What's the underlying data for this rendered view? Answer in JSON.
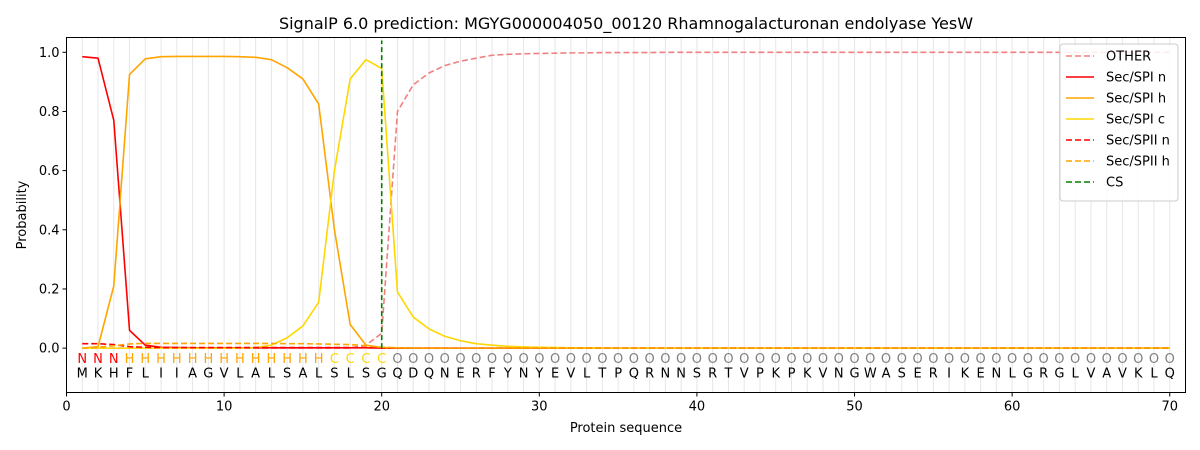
{
  "chart_data": {
    "type": "line",
    "title": "SignalP 6.0 prediction: MGYG000004050_00120 Rhamnogalacturonan endolyase YesW",
    "xlabel": "Protein sequence",
    "ylabel": "Probability",
    "xlim": [
      0,
      71
    ],
    "ylim": [
      -0.15,
      1.05
    ],
    "x_ticks": [
      0,
      10,
      20,
      30,
      40,
      50,
      60,
      70
    ],
    "y_ticks": [
      0.0,
      0.2,
      0.4,
      0.6,
      0.8,
      1.0
    ],
    "x_tick_labels": [
      "0",
      "10",
      "20",
      "30",
      "40",
      "50",
      "60",
      "70"
    ],
    "y_tick_labels": [
      "0.0",
      "0.2",
      "0.4",
      "0.6",
      "0.8",
      "1.0"
    ],
    "grid": "vertical lines at each residue",
    "legend_position": "top-right",
    "sequence": [
      "M",
      "K",
      "H",
      "F",
      "L",
      "I",
      "I",
      "A",
      "G",
      "V",
      "L",
      "A",
      "L",
      "S",
      "A",
      "L",
      "S",
      "L",
      "S",
      "G",
      "Q",
      "D",
      "Q",
      "N",
      "E",
      "R",
      "F",
      "Y",
      "N",
      "Y",
      "E",
      "V",
      "L",
      "T",
      "P",
      "Q",
      "R",
      "N",
      "N",
      "S",
      "R",
      "T",
      "V",
      "P",
      "K",
      "P",
      "K",
      "V",
      "N",
      "G",
      "W",
      "A",
      "S",
      "E",
      "R",
      "I",
      "K",
      "E",
      "N",
      "L",
      "G",
      "R",
      "G",
      "L",
      "V",
      "A",
      "V",
      "K",
      "L",
      "Q"
    ],
    "region_labels": [
      "N",
      "N",
      "N",
      "H",
      "H",
      "H",
      "H",
      "H",
      "H",
      "H",
      "H",
      "H",
      "H",
      "H",
      "H",
      "H",
      "C",
      "C",
      "C",
      "C",
      "O",
      "O",
      "O",
      "O",
      "O",
      "O",
      "O",
      "O",
      "O",
      "O",
      "O",
      "O",
      "O",
      "O",
      "O",
      "O",
      "O",
      "O",
      "O",
      "O",
      "O",
      "O",
      "O",
      "O",
      "O",
      "O",
      "O",
      "O",
      "O",
      "O",
      "O",
      "O",
      "O",
      "O",
      "O",
      "O",
      "O",
      "O",
      "O",
      "O",
      "O",
      "O",
      "O",
      "O",
      "O",
      "O",
      "O",
      "O",
      "O",
      "O"
    ],
    "region_colors": {
      "N": "#ff0000",
      "H": "#ffa500",
      "C": "#ffd700",
      "O": "#808080"
    },
    "series": [
      {
        "name": "OTHER",
        "color": "#f08080",
        "dash": "dashed",
        "values": [
          0.0,
          0.0,
          0.0,
          0.0,
          0.0,
          0.0,
          0.0,
          0.0,
          0.0,
          0.0,
          0.0,
          0.0,
          0.0,
          0.0,
          0.0,
          0.0,
          0.0,
          0.0,
          0.01,
          0.05,
          0.8,
          0.89,
          0.93,
          0.955,
          0.97,
          0.98,
          0.99,
          0.993,
          0.995,
          0.996,
          0.997,
          0.998,
          0.998,
          0.999,
          0.999,
          0.999,
          0.999,
          1.0,
          1.0,
          1.0,
          1.0,
          1.0,
          1.0,
          1.0,
          1.0,
          1.0,
          1.0,
          1.0,
          1.0,
          1.0,
          1.0,
          1.0,
          1.0,
          1.0,
          1.0,
          1.0,
          1.0,
          1.0,
          1.0,
          1.0,
          1.0,
          1.0,
          1.0,
          1.0,
          1.0,
          1.0,
          1.0,
          1.0,
          1.0,
          1.0
        ]
      },
      {
        "name": "Sec/SPI n",
        "color": "#ff0000",
        "dash": "solid",
        "values": [
          0.985,
          0.98,
          0.77,
          0.06,
          0.01,
          0.003,
          0.002,
          0.001,
          0.001,
          0.001,
          0.001,
          0.001,
          0.001,
          0.001,
          0.001,
          0.001,
          0.001,
          0.001,
          0.001,
          0.0,
          0.0,
          0.0,
          0.0,
          0.0,
          0.0,
          0.0,
          0.0,
          0.0,
          0.0,
          0.0,
          0.0,
          0.0,
          0.0,
          0.0,
          0.0,
          0.0,
          0.0,
          0.0,
          0.0,
          0.0,
          0.0,
          0.0,
          0.0,
          0.0,
          0.0,
          0.0,
          0.0,
          0.0,
          0.0,
          0.0,
          0.0,
          0.0,
          0.0,
          0.0,
          0.0,
          0.0,
          0.0,
          0.0,
          0.0,
          0.0,
          0.0,
          0.0,
          0.0,
          0.0,
          0.0,
          0.0,
          0.0,
          0.0,
          0.0,
          0.0
        ]
      },
      {
        "name": "Sec/SPI h",
        "color": "#ffa500",
        "dash": "solid",
        "values": [
          0.0,
          0.005,
          0.21,
          0.925,
          0.978,
          0.985,
          0.986,
          0.986,
          0.986,
          0.986,
          0.985,
          0.983,
          0.975,
          0.948,
          0.91,
          0.825,
          0.4,
          0.08,
          0.01,
          0.002,
          0.001,
          0.0,
          0.0,
          0.0,
          0.0,
          0.0,
          0.0,
          0.0,
          0.0,
          0.0,
          0.0,
          0.0,
          0.0,
          0.0,
          0.0,
          0.0,
          0.0,
          0.0,
          0.0,
          0.0,
          0.0,
          0.0,
          0.0,
          0.0,
          0.0,
          0.0,
          0.0,
          0.0,
          0.0,
          0.0,
          0.0,
          0.0,
          0.0,
          0.0,
          0.0,
          0.0,
          0.0,
          0.0,
          0.0,
          0.0,
          0.0,
          0.0,
          0.0,
          0.0,
          0.0,
          0.0,
          0.0,
          0.0,
          0.0,
          0.0
        ]
      },
      {
        "name": "Sec/SPI c",
        "color": "#ffd700",
        "dash": "solid",
        "values": [
          0.0,
          0.0,
          0.0,
          0.0,
          0.0,
          0.0,
          0.0,
          0.0,
          0.0,
          0.0,
          0.0,
          0.002,
          0.01,
          0.035,
          0.075,
          0.155,
          0.6,
          0.91,
          0.975,
          0.945,
          0.19,
          0.105,
          0.065,
          0.04,
          0.025,
          0.015,
          0.01,
          0.006,
          0.004,
          0.003,
          0.002,
          0.001,
          0.001,
          0.0,
          0.0,
          0.0,
          0.0,
          0.0,
          0.0,
          0.0,
          0.0,
          0.0,
          0.0,
          0.0,
          0.0,
          0.0,
          0.0,
          0.0,
          0.0,
          0.0,
          0.0,
          0.0,
          0.0,
          0.0,
          0.0,
          0.0,
          0.0,
          0.0,
          0.0,
          0.0,
          0.0,
          0.0,
          0.0,
          0.0,
          0.0,
          0.0,
          0.0,
          0.0,
          0.0,
          0.0
        ]
      },
      {
        "name": "Sec/SPII n",
        "color": "#ff0000",
        "dash": "dashed",
        "values": [
          0.015,
          0.015,
          0.012,
          0.005,
          0.003,
          0.002,
          0.002,
          0.002,
          0.002,
          0.002,
          0.002,
          0.002,
          0.002,
          0.002,
          0.002,
          0.002,
          0.002,
          0.002,
          0.002,
          0.001,
          0.0,
          0.0,
          0.0,
          0.0,
          0.0,
          0.0,
          0.0,
          0.0,
          0.0,
          0.0,
          0.0,
          0.0,
          0.0,
          0.0,
          0.0,
          0.0,
          0.0,
          0.0,
          0.0,
          0.0,
          0.0,
          0.0,
          0.0,
          0.0,
          0.0,
          0.0,
          0.0,
          0.0,
          0.0,
          0.0,
          0.0,
          0.0,
          0.0,
          0.0,
          0.0,
          0.0,
          0.0,
          0.0,
          0.0,
          0.0,
          0.0,
          0.0,
          0.0,
          0.0,
          0.0,
          0.0,
          0.0,
          0.0,
          0.0,
          0.0
        ]
      },
      {
        "name": "Sec/SPII h",
        "color": "#ffa500",
        "dash": "dashed",
        "values": [
          0.0,
          0.003,
          0.008,
          0.014,
          0.016,
          0.016,
          0.016,
          0.016,
          0.016,
          0.016,
          0.016,
          0.016,
          0.016,
          0.015,
          0.015,
          0.014,
          0.013,
          0.012,
          0.008,
          0.003,
          0.001,
          0.0,
          0.0,
          0.0,
          0.0,
          0.0,
          0.0,
          0.0,
          0.0,
          0.0,
          0.0,
          0.0,
          0.0,
          0.0,
          0.0,
          0.0,
          0.0,
          0.0,
          0.0,
          0.0,
          0.0,
          0.0,
          0.0,
          0.0,
          0.0,
          0.0,
          0.0,
          0.0,
          0.0,
          0.0,
          0.0,
          0.0,
          0.0,
          0.0,
          0.0,
          0.0,
          0.0,
          0.0,
          0.0,
          0.0,
          0.0,
          0.0,
          0.0,
          0.0,
          0.0,
          0.0,
          0.0,
          0.0,
          0.0,
          0.0
        ]
      }
    ],
    "cs_marker": {
      "name": "CS",
      "color": "#008000",
      "dash": "dashed",
      "x": 20,
      "y_range": [
        0,
        1.04
      ]
    }
  }
}
